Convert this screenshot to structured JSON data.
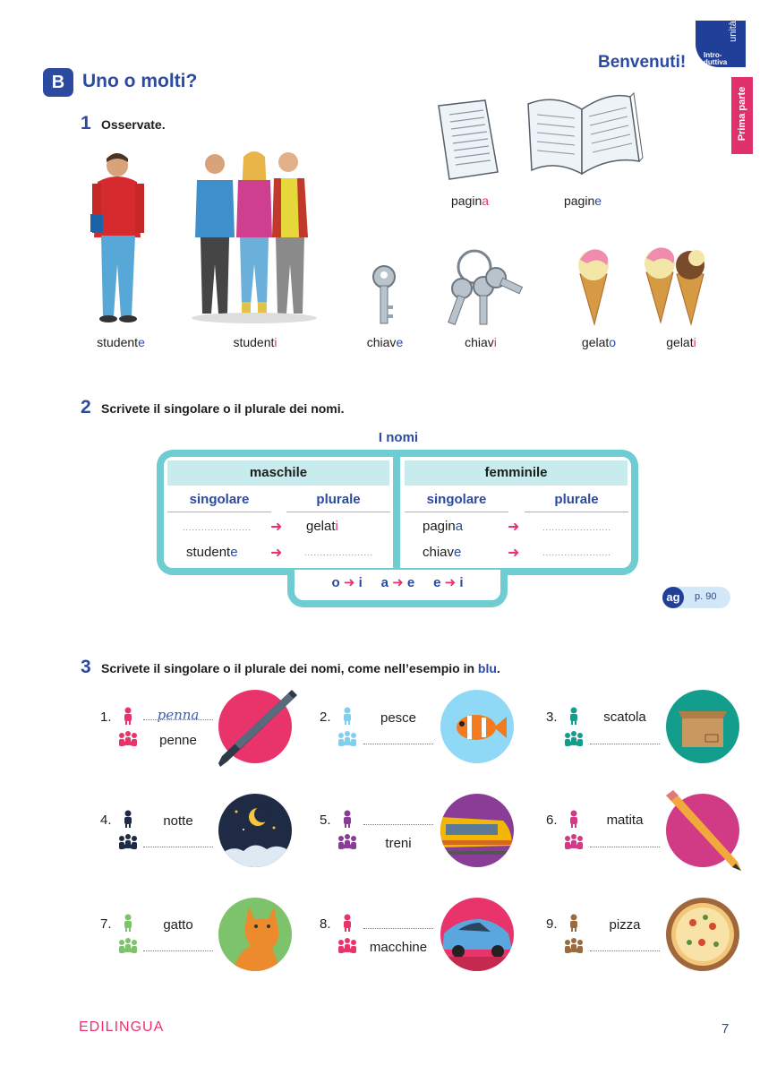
{
  "header": {
    "title": "Benvenuti!",
    "unit_top": "unità",
    "unit_bottom": "Intro-duttiva",
    "part": "Prima parte"
  },
  "section": {
    "badge": "B",
    "title": "Uno o molti?"
  },
  "ex1": {
    "num": "1",
    "text": "Osservate.",
    "labels": [
      {
        "stem": "student",
        "end": "e"
      },
      {
        "stem": "student",
        "end": "i"
      },
      {
        "stem": "chiav",
        "end": "e"
      },
      {
        "stem": "chiav",
        "end": "i"
      },
      {
        "stem": "gelat",
        "end": "o"
      },
      {
        "stem": "gelat",
        "end": "i"
      },
      {
        "stem": "pagin",
        "end": "a"
      },
      {
        "stem": "pagin",
        "end": "e"
      }
    ]
  },
  "ex2": {
    "num": "2",
    "text": "Scrivete il singolare o il plurale dei nomi.",
    "table_title": "I nomi",
    "masc": "maschile",
    "fem": "femminile",
    "sing": "singolare",
    "plur": "plurale",
    "rows": {
      "m1_plural": {
        "stem": "gelat",
        "end": "i"
      },
      "m2_singular": {
        "stem": "student",
        "end": "e"
      },
      "f1_singular": {
        "stem": "pagin",
        "end": "a"
      },
      "f2_singular": {
        "stem": "chiav",
        "end": "e"
      }
    },
    "rules": [
      {
        "from": "o",
        "to": "i"
      },
      {
        "from": "a",
        "to": "e"
      },
      {
        "from": "e",
        "to": "i"
      }
    ],
    "ag": "ag",
    "ag_page": "p. 90",
    "arrow": "➜",
    "dots": "......................"
  },
  "ex3": {
    "num": "3",
    "text": "Scrivete il singolare o il plurale dei nomi, come nell’esempio in",
    "text_blue": "blu",
    "text_end": ".",
    "items": [
      {
        "n": "1.",
        "sing": "penna",
        "plur": "penne",
        "color": "#e9336b"
      },
      {
        "n": "2.",
        "sing": "pesce",
        "plur": "",
        "color": "#7fcfef"
      },
      {
        "n": "3.",
        "sing": "scatola",
        "plur": "",
        "color": "#139d8d"
      },
      {
        "n": "4.",
        "sing": "notte",
        "plur": "",
        "color": "#1f2a44"
      },
      {
        "n": "5.",
        "sing": "",
        "plur": "treni",
        "color": "#8a3d97"
      },
      {
        "n": "6.",
        "sing": "matita",
        "plur": "",
        "color": "#d13a85"
      },
      {
        "n": "7.",
        "sing": "gatto",
        "plur": "",
        "color": "#7dc36b"
      },
      {
        "n": "8.",
        "sing": "",
        "plur": "macchine",
        "color": "#e9336b"
      },
      {
        "n": "9.",
        "sing": "pizza",
        "plur": "",
        "color": "#9a6b3f"
      }
    ]
  },
  "footer": {
    "logo": "EDILINGUA",
    "page": "7"
  }
}
